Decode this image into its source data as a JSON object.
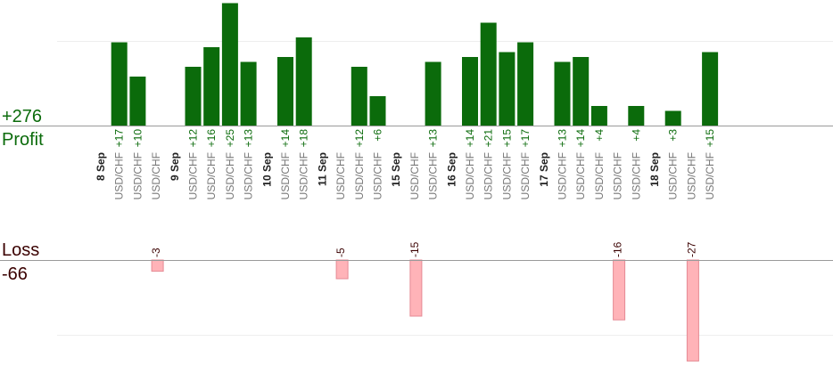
{
  "chart_data": {
    "type": "bar",
    "profit_label": "Profit",
    "loss_label": "Loss",
    "profit_total": "+276",
    "loss_total": "-66",
    "colors": {
      "profit_bar": "#0b6b0b",
      "profit_text": "#0b6b0b",
      "loss_bar": "#ffb3b8",
      "loss_border": "#e58a94",
      "loss_text": "#3a0000",
      "date_text": "#222222",
      "instrument_text": "#777777"
    },
    "groups": [
      {
        "date": "8 Sep",
        "trades": [
          {
            "instrument": "USD/CHF",
            "value": 17,
            "label": "+17"
          },
          {
            "instrument": "USD/CHF",
            "value": 10,
            "label": "+10"
          },
          {
            "instrument": "USD/CHF",
            "value": -3,
            "label": "-3"
          }
        ]
      },
      {
        "date": "9 Sep",
        "trades": [
          {
            "instrument": "USD/CHF",
            "value": 12,
            "label": "+12"
          },
          {
            "instrument": "USD/CHF",
            "value": 16,
            "label": "+16"
          },
          {
            "instrument": "USD/CHF",
            "value": 25,
            "label": "+25"
          },
          {
            "instrument": "USD/CHF",
            "value": 13,
            "label": "+13"
          }
        ]
      },
      {
        "date": "10 Sep",
        "trades": [
          {
            "instrument": "USD/CHF",
            "value": 14,
            "label": "+14"
          },
          {
            "instrument": "USD/CHF",
            "value": 18,
            "label": "+18"
          }
        ]
      },
      {
        "date": "11 Sep",
        "trades": [
          {
            "instrument": "USD/CHF",
            "value": -5,
            "label": "-5"
          },
          {
            "instrument": "USD/CHF",
            "value": 12,
            "label": "+12"
          },
          {
            "instrument": "USD/CHF",
            "value": 6,
            "label": "+6"
          }
        ]
      },
      {
        "date": "15 Sep",
        "trades": [
          {
            "instrument": "USD/CHF",
            "value": -15,
            "label": "-15"
          },
          {
            "instrument": "USD/CHF",
            "value": 13,
            "label": "+13"
          }
        ]
      },
      {
        "date": "16 Sep",
        "trades": [
          {
            "instrument": "USD/CHF",
            "value": 14,
            "label": "+14"
          },
          {
            "instrument": "USD/CHF",
            "value": 21,
            "label": "+21"
          },
          {
            "instrument": "USD/CHF",
            "value": 15,
            "label": "+15"
          },
          {
            "instrument": "USD/CHF",
            "value": 17,
            "label": "+17"
          }
        ]
      },
      {
        "date": "17 Sep",
        "trades": [
          {
            "instrument": "USD/CHF",
            "value": 13,
            "label": "+13"
          },
          {
            "instrument": "USD/CHF",
            "value": 14,
            "label": "+14"
          },
          {
            "instrument": "USD/CHF",
            "value": 4,
            "label": "+4"
          },
          {
            "instrument": "USD/CHF",
            "value": -16,
            "label": "-16"
          },
          {
            "instrument": "USD/CHF",
            "value": 4,
            "label": "+4"
          }
        ]
      },
      {
        "date": "18 Sep",
        "trades": [
          {
            "instrument": "USD/CHF",
            "value": 3,
            "label": "+3"
          },
          {
            "instrument": "USD/CHF",
            "value": -27,
            "label": "-27"
          },
          {
            "instrument": "USD/CHF",
            "value": 15,
            "label": "+15"
          }
        ]
      }
    ]
  }
}
